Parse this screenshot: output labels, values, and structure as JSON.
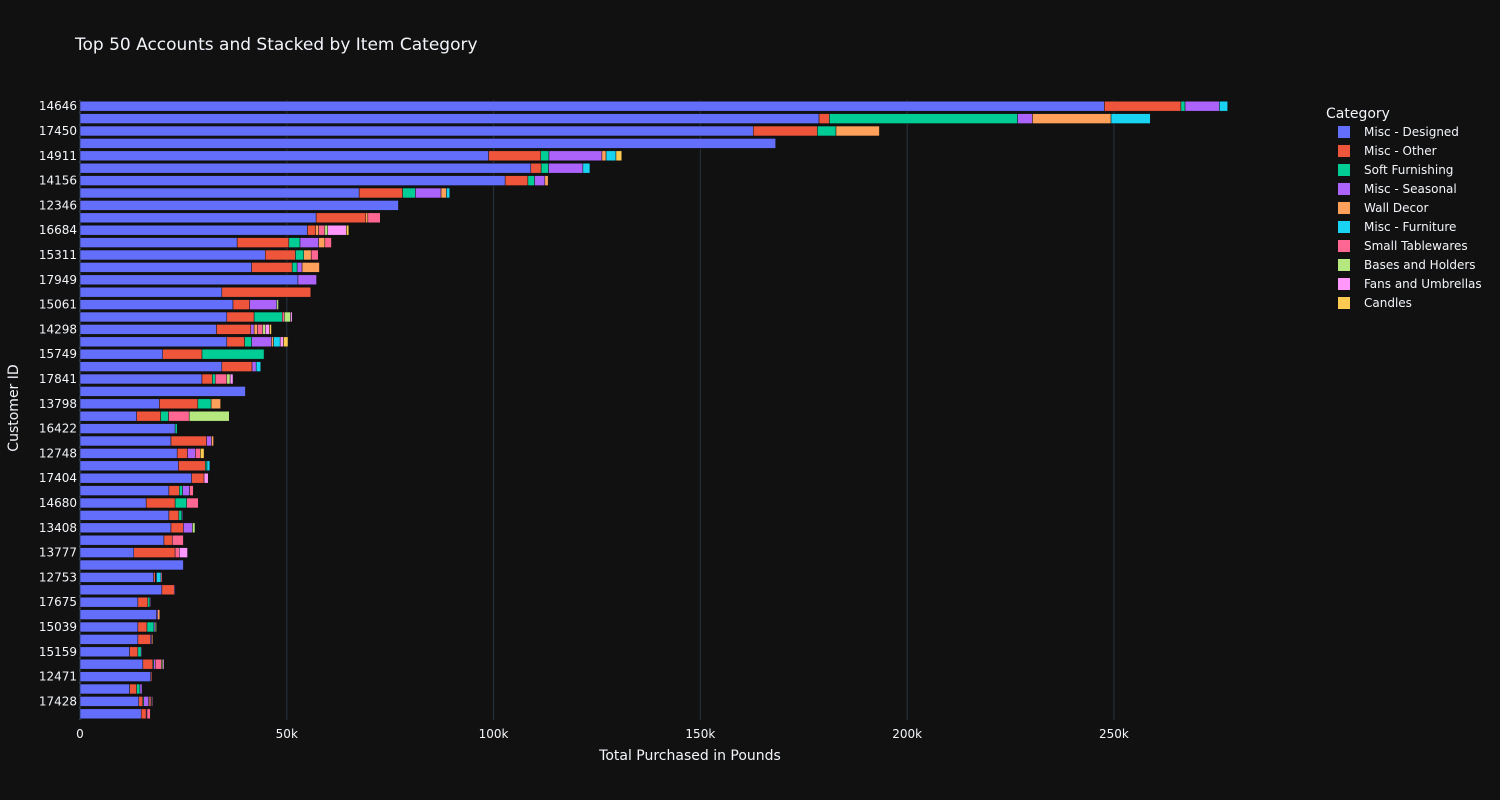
{
  "chart_data": {
    "type": "bar",
    "orientation": "horizontal",
    "barmode": "stack",
    "title": "Top 50 Accounts and Stacked by Item Category",
    "xlabel": "Total Purchased in Pounds",
    "ylabel": "Customer ID",
    "xlim": [
      0,
      280000
    ],
    "xticks": [
      0,
      50000,
      100000,
      150000,
      200000,
      250000
    ],
    "xtick_labels": [
      "0",
      "50k",
      "100k",
      "150k",
      "200k",
      "250k"
    ],
    "grid": true,
    "legend": {
      "title": "Category",
      "placement": "top-right"
    },
    "background": "#111111",
    "series": [
      {
        "name": "Misc - Designed",
        "color": "#636efa",
        "values": [
          14800,
          14200,
          12000,
          17100,
          15200,
          12000,
          14000,
          14000,
          18500,
          14000,
          19800,
          17800,
          25000,
          13000,
          20300,
          22000,
          21500,
          16000,
          21500,
          27000,
          23800,
          23500,
          22000,
          23000,
          13700,
          19200,
          40000,
          29500,
          34300,
          20000,
          35500,
          33000,
          35500,
          37000,
          34300,
          52700,
          41500,
          44800,
          38000,
          55000,
          57100,
          77000,
          67500,
          102800,
          109000,
          98800,
          168200,
          162800,
          178700,
          247700
        ]
      },
      {
        "name": "Misc - Other",
        "color": "#ef553b",
        "values": [
          1200,
          1000,
          1700,
          300,
          2400,
          2000,
          3000,
          2200,
          0,
          2400,
          3000,
          400,
          0,
          10000,
          2000,
          3000,
          2400,
          7000,
          2500,
          3000,
          6500,
          2500,
          8600,
          0,
          5800,
          9300,
          0,
          2500,
          7300,
          9500,
          4300,
          8300,
          6600,
          4000,
          21500,
          0,
          9800,
          7300,
          12500,
          2000,
          12000,
          0,
          10500,
          5500,
          2500,
          12600,
          0,
          15500,
          2500,
          18500
        ]
      },
      {
        "name": "Soft Furnishing",
        "color": "#00cc96",
        "values": [
          0,
          200,
          800,
          100,
          200,
          800,
          0,
          1700,
          0,
          500,
          0,
          100,
          0,
          0,
          0,
          0,
          700,
          2800,
          800,
          0,
          400,
          0,
          0,
          500,
          1900,
          3200,
          0,
          700,
          0,
          15000,
          1700,
          0,
          6800,
          0,
          0,
          0,
          1200,
          2000,
          2700,
          0,
          0,
          0,
          3100,
          1600,
          1800,
          2000,
          0,
          4500,
          45500,
          1000
        ]
      },
      {
        "name": "Misc  - Seasonal",
        "color": "#ab63fa",
        "values": [
          200,
          1200,
          500,
          0,
          400,
          200,
          300,
          300,
          300,
          200,
          200,
          200,
          0,
          0,
          0,
          2200,
          200,
          0,
          1700,
          0,
          0,
          1900,
          1200,
          0,
          0,
          0,
          0,
          0,
          1000,
          0,
          4800,
          800,
          0,
          6600,
          0,
          4500,
          1200,
          0,
          4500,
          0,
          0,
          0,
          6200,
          2500,
          8300,
          12800,
          0,
          0,
          3600,
          8300
        ]
      },
      {
        "name": "Wall Decor",
        "color": "#ffa15a",
        "values": [
          0,
          300,
          0,
          0,
          0,
          0,
          300,
          0,
          500,
          0,
          0,
          0,
          0,
          0,
          0,
          0,
          0,
          0,
          0,
          0,
          0,
          0,
          500,
          0,
          0,
          2300,
          0,
          0,
          0,
          0,
          500,
          800,
          0,
          0,
          0,
          0,
          4200,
          1800,
          1500,
          700,
          500,
          0,
          1300,
          800,
          0,
          1000,
          0,
          10500,
          19000,
          0
        ]
      },
      {
        "name": "Misc - Furniture",
        "color": "#19d3f3",
        "values": [
          0,
          0,
          0,
          0,
          0,
          0,
          0,
          0,
          0,
          0,
          0,
          1100,
          0,
          0,
          0,
          0,
          0,
          0,
          0,
          0,
          700,
          0,
          0,
          0,
          0,
          0,
          0,
          0,
          1100,
          0,
          1600,
          0,
          0,
          0,
          0,
          0,
          0,
          0,
          0,
          0,
          0,
          0,
          800,
          0,
          1700,
          2400,
          0,
          0,
          9500,
          2000
        ]
      },
      {
        "name": "Small Tablewares",
        "color": "#ff6692",
        "values": [
          800,
          300,
          0,
          0,
          1500,
          0,
          0,
          0,
          0,
          0,
          0,
          300,
          0,
          1000,
          2700,
          0,
          0,
          2800,
          900,
          0,
          0,
          1200,
          0,
          0,
          5000,
          0,
          0,
          2800,
          0,
          0,
          0,
          1300,
          500,
          0,
          0,
          0,
          0,
          1700,
          1600,
          1500,
          3000,
          0,
          0,
          0,
          0,
          0,
          0,
          0,
          0,
          0
        ]
      },
      {
        "name": "Bases and Holders",
        "color": "#b6e880",
        "values": [
          0,
          200,
          0,
          0,
          300,
          0,
          0,
          300,
          0,
          0,
          0,
          0,
          0,
          0,
          0,
          600,
          0,
          0,
          0,
          0,
          0,
          0,
          0,
          0,
          9700,
          0,
          0,
          800,
          0,
          0,
          0,
          600,
          1500,
          400,
          0,
          0,
          0,
          0,
          0,
          700,
          0,
          0,
          0,
          0,
          0,
          0,
          0,
          0,
          0,
          0
        ]
      },
      {
        "name": "Fans and Umbrellas",
        "color": "#ff97ff",
        "values": [
          0,
          200,
          0,
          0,
          300,
          0,
          0,
          0,
          0,
          0,
          0,
          0,
          0,
          2000,
          0,
          0,
          0,
          0,
          0,
          1000,
          0,
          0,
          0,
          0,
          0,
          0,
          0,
          700,
          0,
          0,
          800,
          1000,
          400,
          0,
          0,
          0,
          0,
          0,
          0,
          4500,
          0,
          0,
          0,
          0,
          0,
          0,
          0,
          0,
          0,
          0
        ]
      },
      {
        "name": "Candles",
        "color": "#fecb52",
        "values": [
          0,
          0,
          0,
          0,
          0,
          0,
          0,
          0,
          0,
          0,
          0,
          0,
          0,
          0,
          0,
          0,
          0,
          0,
          0,
          0,
          0,
          900,
          0,
          0,
          0,
          0,
          0,
          0,
          0,
          0,
          1100,
          500,
          0,
          0,
          0,
          0,
          0,
          0,
          0,
          600,
          0,
          0,
          0,
          0,
          0,
          1400,
          0,
          0,
          0,
          0
        ]
      }
    ],
    "categories": [
      "",
      "17428",
      "",
      "12471",
      "",
      "15159",
      "",
      "15039",
      "",
      "17675",
      "",
      "12753",
      "",
      "13777",
      "",
      "13408",
      "",
      "14680",
      "",
      "17404",
      "",
      "12748",
      "",
      "16422",
      "",
      "13798",
      "",
      "17841",
      "",
      "15749",
      "",
      "14298",
      "",
      "15061",
      "",
      "17949",
      "",
      "15311",
      "",
      "16684",
      "",
      "12346",
      "",
      "14156",
      "",
      "14911",
      "",
      "17450",
      "",
      "14646"
    ]
  }
}
